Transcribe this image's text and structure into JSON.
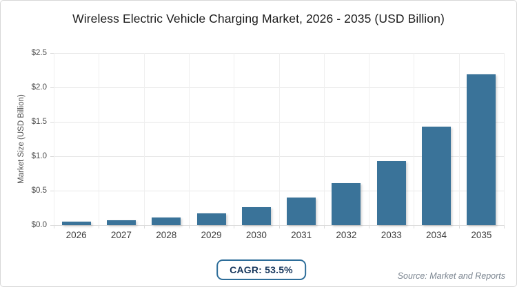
{
  "page": {
    "cagr_badge": "CAGR: 53.5%",
    "source": "Source: Market and Reports"
  },
  "chart_data": {
    "type": "bar",
    "title": "Wireless Electric Vehicle Charging Market, 2026 - 2035 (USD Billion)",
    "categories": [
      "2026",
      "2027",
      "2028",
      "2029",
      "2030",
      "2031",
      "2032",
      "2033",
      "2034",
      "2035"
    ],
    "values": [
      0.05,
      0.07,
      0.11,
      0.17,
      0.26,
      0.4,
      0.61,
      0.93,
      1.43,
      2.19
    ],
    "xlabel": "",
    "ylabel": "Market Size (USD Billion)",
    "ylim": [
      0,
      2.5
    ],
    "ytick_step": 0.5,
    "ytick_labels": [
      "$0.0",
      "$0.5",
      "$1.0",
      "$1.5",
      "$2.0",
      "$2.5"
    ],
    "grid": true,
    "legend_position": "none"
  },
  "colors": {
    "bar": "#3a7399",
    "badge_border": "#2d6d99",
    "badge_text": "#16365c",
    "grid_h": "#e6e6e6",
    "grid_v": "#efefef",
    "baseline": "#d8d8d8",
    "axis_text": "#4d4d4d",
    "title_text": "#1c1c1c",
    "source_text": "#7b8590",
    "card_border": "#d7d7d7"
  }
}
